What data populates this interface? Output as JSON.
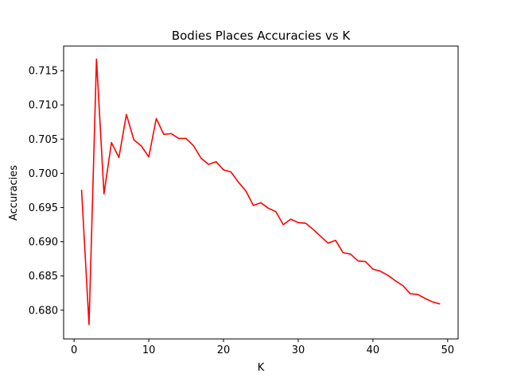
{
  "chart_data": {
    "type": "line",
    "title": "Bodies Places Accuracies vs K",
    "xlabel": "K",
    "ylabel": "Accuracies",
    "xlim": [
      -1.4,
      51.4
    ],
    "ylim": [
      0.6758,
      0.7186
    ],
    "xticks": [
      0,
      10,
      20,
      30,
      40,
      50
    ],
    "xtick_labels": [
      "0",
      "10",
      "20",
      "30",
      "40",
      "50"
    ],
    "yticks": [
      0.68,
      0.685,
      0.69,
      0.695,
      0.7,
      0.705,
      0.71,
      0.715
    ],
    "ytick_labels": [
      "0.680",
      "0.685",
      "0.690",
      "0.695",
      "0.700",
      "0.705",
      "0.710",
      "0.715"
    ],
    "grid": false,
    "series": [
      {
        "color": "#ff0000",
        "x": [
          1,
          2,
          3,
          4,
          5,
          6,
          7,
          8,
          9,
          10,
          11,
          12,
          13,
          14,
          15,
          16,
          17,
          18,
          19,
          20,
          21,
          22,
          23,
          24,
          25,
          26,
          27,
          28,
          29,
          30,
          31,
          32,
          33,
          34,
          35,
          36,
          37,
          38,
          39,
          40,
          41,
          42,
          43,
          44,
          45,
          46,
          47,
          48,
          49
        ],
        "y": [
          0.6976,
          0.6779,
          0.7167,
          0.697,
          0.7045,
          0.7023,
          0.7086,
          0.7049,
          0.704,
          0.7024,
          0.708,
          0.7057,
          0.7058,
          0.7051,
          0.7051,
          0.704,
          0.7022,
          0.7013,
          0.7017,
          0.7005,
          0.7002,
          0.6987,
          0.6974,
          0.6953,
          0.6957,
          0.6949,
          0.6944,
          0.6925,
          0.6933,
          0.6928,
          0.6927,
          0.6918,
          0.6908,
          0.6898,
          0.6902,
          0.6884,
          0.6882,
          0.6872,
          0.6871,
          0.686,
          0.6857,
          0.6851,
          0.6843,
          0.6836,
          0.6824,
          0.6823,
          0.6817,
          0.6812,
          0.6809
        ]
      }
    ]
  }
}
